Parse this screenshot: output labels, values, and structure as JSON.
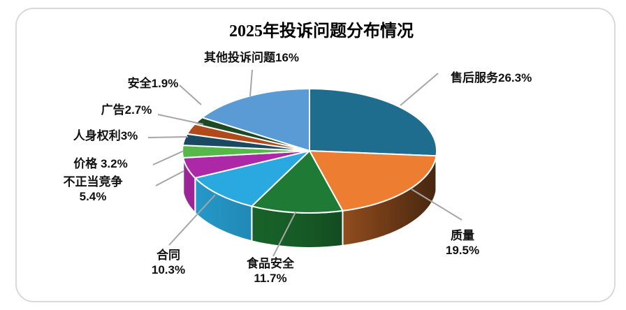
{
  "frame": {
    "border_color": "#D9D9D9",
    "background": "#FFFFFF"
  },
  "chart_data": {
    "type": "pie",
    "is_3d": true,
    "title": "2025年投诉问题分布情况",
    "start_angle_deg": 0,
    "direction": "clockwise",
    "legend": "none",
    "label_style": "outside-with-leader-lines",
    "leader_line_color": "#A6A6A6",
    "slice_border_color": "#FFFFFF",
    "slices": [
      {
        "name": "售后服务",
        "value": 26.3,
        "display_label": "售后服务26.3%",
        "color": "#1E6C8E"
      },
      {
        "name": "质量",
        "value": 19.5,
        "display_label": "质量\n19.5%",
        "color": "#ED7D31"
      },
      {
        "name": "食品安全",
        "value": 11.7,
        "display_label": "食品安全\n11.7%",
        "color": "#1E7A34"
      },
      {
        "name": "合同",
        "value": 10.3,
        "display_label": "合同\n10.3%",
        "color": "#29A9DF"
      },
      {
        "name": "不正当竞争",
        "value": 5.4,
        "display_label": "不正当竞争\n5.4%",
        "color": "#AC28A7"
      },
      {
        "name": "价格",
        "value": 3.2,
        "display_label": "价格 3.2%",
        "color": "#56B848"
      },
      {
        "name": "人身权利",
        "value": 3.0,
        "display_label": "人身权利3%",
        "color": "#1A4A63"
      },
      {
        "name": "广告",
        "value": 2.7,
        "display_label": "广告2.7%",
        "color": "#B04A1B"
      },
      {
        "name": "安全",
        "value": 1.9,
        "display_label": "安全1.9%",
        "color": "#1D4A24"
      },
      {
        "name": "其他投诉问题",
        "value": 16.0,
        "display_label": "其他投诉问题16%",
        "color": "#5B9BD5"
      }
    ]
  }
}
